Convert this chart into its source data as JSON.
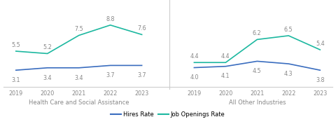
{
  "years": [
    2019,
    2020,
    2021,
    2022,
    2023
  ],
  "hcsa_hires": [
    3.1,
    3.4,
    3.4,
    3.7,
    3.7
  ],
  "hcsa_openings": [
    5.5,
    5.2,
    7.5,
    8.8,
    7.6
  ],
  "aoi_hires": [
    4.0,
    4.1,
    4.5,
    4.3,
    3.8
  ],
  "aoi_openings": [
    4.4,
    4.4,
    6.2,
    6.5,
    5.4
  ],
  "hires_color": "#3a6dbf",
  "openings_color": "#1db8a0",
  "label1": "Health Care and Social Assistance",
  "label2": "All Other Industries",
  "legend_hires": "Hires Rate",
  "legend_openings": "Job Openings Rate",
  "divider_color": "#cccccc",
  "text_color": "#888888",
  "annotation_fontsize": 5.8,
  "tick_fontsize": 5.8,
  "subtitle_fontsize": 6.0,
  "legend_fontsize": 6.0,
  "hcsa_ylim": [
    1.0,
    11.5
  ],
  "aoi_ylim": [
    2.5,
    9.0
  ]
}
